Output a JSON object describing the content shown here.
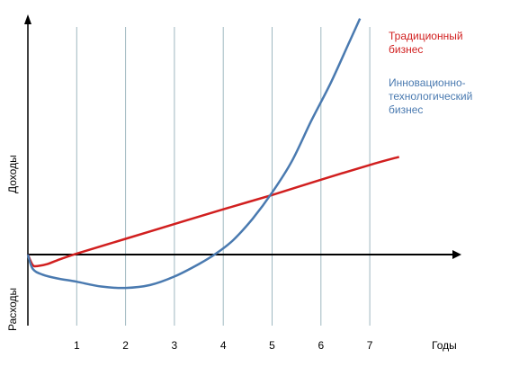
{
  "chart_data": {
    "type": "line",
    "xlabel": "Годы",
    "ylabel_positive": "Доходы",
    "ylabel_negative": "Расходы",
    "x_ticks": [
      1,
      2,
      3,
      4,
      5,
      6,
      7
    ],
    "x_tick_labels": [
      "1",
      "2",
      "3",
      "4",
      "5",
      "6",
      "7"
    ],
    "xlim": [
      0,
      8.8
    ],
    "ylim": [
      -1.5,
      4.9
    ],
    "grid": "vertical",
    "legend_position": "top-right",
    "series": [
      {
        "name": "Традиционный бизнес",
        "color": "#d11f1f",
        "x": [
          0,
          0.1,
          0.2,
          0.4,
          0.6,
          1.0,
          2.0,
          3.0,
          4.0,
          5.0,
          6.0,
          7.0,
          7.6
        ],
        "y": [
          0,
          -0.22,
          -0.24,
          -0.2,
          -0.12,
          0.02,
          0.33,
          0.64,
          0.95,
          1.25,
          1.57,
          1.88,
          2.05
        ]
      },
      {
        "name": "Инновационно-технологический бизнес",
        "color": "#4a7ab0",
        "x": [
          0,
          0.1,
          0.3,
          0.6,
          1.0,
          1.5,
          2.0,
          2.5,
          3.0,
          3.5,
          3.85,
          4.2,
          4.6,
          5.0,
          5.4,
          5.8,
          6.2,
          6.6,
          6.8
        ],
        "y": [
          0,
          -0.3,
          -0.42,
          -0.5,
          -0.57,
          -0.67,
          -0.7,
          -0.64,
          -0.46,
          -0.2,
          0.02,
          0.3,
          0.75,
          1.3,
          1.95,
          2.8,
          3.6,
          4.5,
          4.95
        ]
      }
    ],
    "legend": [
      {
        "lines": [
          "Традиционный",
          "бизнес"
        ],
        "color": "#d11f1f"
      },
      {
        "lines": [
          "Инновационно-",
          "технологический",
          "бизнес"
        ],
        "color": "#4a7ab0"
      }
    ]
  }
}
